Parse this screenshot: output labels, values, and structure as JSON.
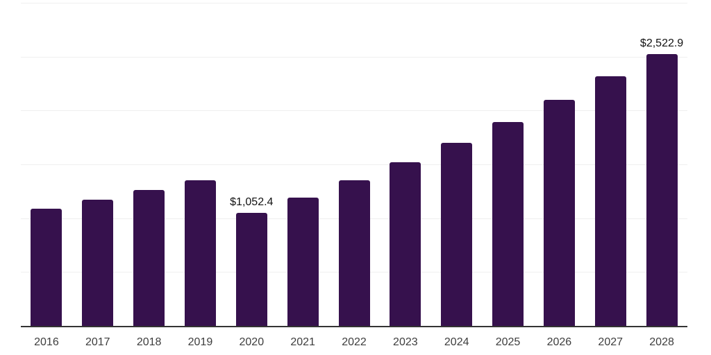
{
  "chart_data": {
    "type": "bar",
    "title": "",
    "xlabel": "",
    "ylabel": "",
    "categories": [
      "2016",
      "2017",
      "2018",
      "2019",
      "2020",
      "2021",
      "2022",
      "2023",
      "2024",
      "2025",
      "2026",
      "2027",
      "2028"
    ],
    "values": [
      1090,
      1170,
      1260,
      1350,
      1052.4,
      1190,
      1355,
      1520,
      1700,
      1895,
      2100,
      2320,
      2522.9
    ],
    "data_labels": {
      "2020": "$1,052.4",
      "2028": "$2,522.9"
    },
    "ylim": [
      0,
      3000
    ],
    "gridline_step": 500,
    "grid": true,
    "legend": false,
    "bar_color": "#36114D",
    "grid_color": "#efefef",
    "axis_color": "#333333",
    "tick_label_color": "#3d3d3d",
    "data_label_color": "#111111"
  }
}
